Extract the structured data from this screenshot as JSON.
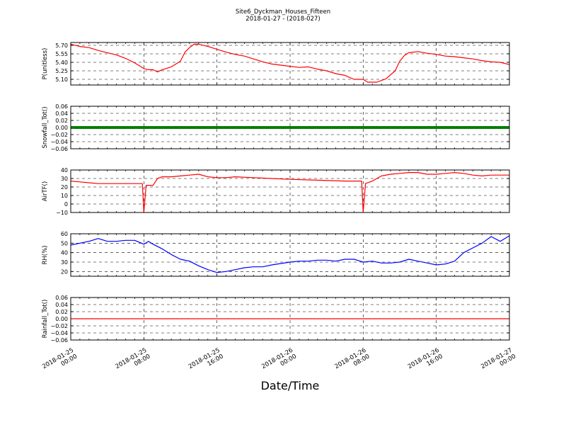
{
  "figure": {
    "title_line1": "Site6_Dyckman_Houses_Fifteen",
    "title_line2": "2018-01-27 - (2018-027)",
    "xlabel": "Date/Time"
  },
  "chart_data": {
    "type": "line",
    "x_axis": {
      "start": "2018-01-25 00:00",
      "end": "2018-01-27 00:00",
      "tick_labels": [
        [
          "2018-01-25",
          "00:00"
        ],
        [
          "2018-01-25",
          "08:00"
        ],
        [
          "2018-01-25",
          "16:00"
        ],
        [
          "2018-01-26",
          "00:00"
        ],
        [
          "2018-01-26",
          "08:00"
        ],
        [
          "2018-01-26",
          "16:00"
        ],
        [
          "2018-01-27",
          "00:00"
        ]
      ],
      "tick_hours": [
        0,
        8,
        16,
        24,
        32,
        40,
        48
      ]
    },
    "grid": true,
    "panels": [
      {
        "ylabel": "P(unitless)",
        "ylim": [
          5.0,
          5.75
        ],
        "yticks": [
          5.1,
          5.25,
          5.4,
          5.55,
          5.7
        ],
        "ytick_labels": [
          "5.10",
          "5.25",
          "5.40",
          "5.55",
          "5.70"
        ],
        "color": "#ff0000",
        "style": "line",
        "points": [
          [
            "2018-01-25 00:00",
            5.72
          ],
          [
            "2018-01-25 01:00",
            5.68
          ],
          [
            "2018-01-25 02:00",
            5.66
          ],
          [
            "2018-01-25 03:00",
            5.61
          ],
          [
            "2018-01-25 04:00",
            5.57
          ],
          [
            "2018-01-25 05:00",
            5.53
          ],
          [
            "2018-01-25 06:00",
            5.47
          ],
          [
            "2018-01-25 07:00",
            5.39
          ],
          [
            "2018-01-25 08:00",
            5.29
          ],
          [
            "2018-01-25 08:30",
            5.27
          ],
          [
            "2018-01-25 09:00",
            5.27
          ],
          [
            "2018-01-25 09:30",
            5.23
          ],
          [
            "2018-01-25 10:00",
            5.27
          ],
          [
            "2018-01-25 11:00",
            5.32
          ],
          [
            "2018-01-25 12:00",
            5.42
          ],
          [
            "2018-01-25 12:30",
            5.58
          ],
          [
            "2018-01-25 13:00",
            5.66
          ],
          [
            "2018-01-25 13:30",
            5.72
          ],
          [
            "2018-01-25 14:00",
            5.72
          ],
          [
            "2018-01-25 15:00",
            5.68
          ],
          [
            "2018-01-25 16:00",
            5.63
          ],
          [
            "2018-01-25 17:00",
            5.58
          ],
          [
            "2018-01-25 18:00",
            5.54
          ],
          [
            "2018-01-25 19:00",
            5.51
          ],
          [
            "2018-01-25 20:00",
            5.46
          ],
          [
            "2018-01-25 21:00",
            5.41
          ],
          [
            "2018-01-25 22:00",
            5.37
          ],
          [
            "2018-01-26 00:00",
            5.33
          ],
          [
            "2018-01-26 01:00",
            5.31
          ],
          [
            "2018-01-26 02:00",
            5.32
          ],
          [
            "2018-01-26 03:00",
            5.28
          ],
          [
            "2018-01-26 04:00",
            5.25
          ],
          [
            "2018-01-26 05:00",
            5.2
          ],
          [
            "2018-01-26 06:00",
            5.17
          ],
          [
            "2018-01-26 07:00",
            5.1
          ],
          [
            "2018-01-26 08:00",
            5.1
          ],
          [
            "2018-01-26 08:30",
            5.05
          ],
          [
            "2018-01-26 09:30",
            5.05
          ],
          [
            "2018-01-26 10:30",
            5.11
          ],
          [
            "2018-01-26 11:30",
            5.25
          ],
          [
            "2018-01-26 12:00",
            5.42
          ],
          [
            "2018-01-26 12:30",
            5.52
          ],
          [
            "2018-01-26 13:00",
            5.57
          ],
          [
            "2018-01-26 14:00",
            5.59
          ],
          [
            "2018-01-26 15:00",
            5.56
          ],
          [
            "2018-01-26 16:00",
            5.54
          ],
          [
            "2018-01-26 17:00",
            5.51
          ],
          [
            "2018-01-26 18:00",
            5.5
          ],
          [
            "2018-01-26 19:00",
            5.48
          ],
          [
            "2018-01-26 20:00",
            5.46
          ],
          [
            "2018-01-26 21:00",
            5.43
          ],
          [
            "2018-01-26 22:00",
            5.41
          ],
          [
            "2018-01-26 23:00",
            5.4
          ],
          [
            "2018-01-27 00:00",
            5.36
          ]
        ]
      },
      {
        "ylabel": "Snowfall_Tot()",
        "ylim": [
          -0.06,
          0.06
        ],
        "yticks": [
          -0.06,
          -0.04,
          -0.02,
          0.0,
          0.02,
          0.04,
          0.06
        ],
        "ytick_labels": [
          "−0.06",
          "−0.04",
          "−0.02",
          "0.00",
          "0.02",
          "0.04",
          "0.06"
        ],
        "color": "#007f00",
        "style": "thick-line",
        "points": [
          [
            "2018-01-25 00:00",
            0.0
          ],
          [
            "2018-01-27 00:00",
            0.0
          ]
        ]
      },
      {
        "ylabel": "AirTF()",
        "ylim": [
          -10,
          40
        ],
        "yticks": [
          -10,
          0,
          10,
          20,
          30,
          40
        ],
        "ytick_labels": [
          "−10",
          "0",
          "10",
          "20",
          "30",
          "40"
        ],
        "color": "#ff0000",
        "style": "line",
        "points": [
          [
            "2018-01-25 00:00",
            27
          ],
          [
            "2018-01-25 01:00",
            26
          ],
          [
            "2018-01-25 02:00",
            25
          ],
          [
            "2018-01-25 03:00",
            24
          ],
          [
            "2018-01-25 05:00",
            24
          ],
          [
            "2018-01-25 07:00",
            24
          ],
          [
            "2018-01-25 07:50",
            24
          ],
          [
            "2018-01-25 08:00",
            -10
          ],
          [
            "2018-01-25 08:15",
            22
          ],
          [
            "2018-01-25 09:00",
            22
          ],
          [
            "2018-01-25 09:30",
            30
          ],
          [
            "2018-01-25 10:00",
            32
          ],
          [
            "2018-01-25 11:00",
            32
          ],
          [
            "2018-01-25 12:00",
            33
          ],
          [
            "2018-01-25 13:00",
            34
          ],
          [
            "2018-01-25 14:00",
            35
          ],
          [
            "2018-01-25 15:00",
            32
          ],
          [
            "2018-01-25 16:00",
            31
          ],
          [
            "2018-01-25 17:00",
            31
          ],
          [
            "2018-01-25 18:00",
            32
          ],
          [
            "2018-01-25 20:00",
            31
          ],
          [
            "2018-01-25 22:00",
            30
          ],
          [
            "2018-01-26 00:00",
            29
          ],
          [
            "2018-01-26 03:00",
            28
          ],
          [
            "2018-01-26 06:00",
            27
          ],
          [
            "2018-01-26 07:50",
            27
          ],
          [
            "2018-01-26 08:00",
            -10
          ],
          [
            "2018-01-26 08:15",
            24
          ],
          [
            "2018-01-26 09:00",
            27
          ],
          [
            "2018-01-26 10:00",
            33
          ],
          [
            "2018-01-26 11:00",
            35
          ],
          [
            "2018-01-26 12:00",
            36
          ],
          [
            "2018-01-26 13:00",
            37
          ],
          [
            "2018-01-26 14:00",
            37
          ],
          [
            "2018-01-26 15:00",
            35
          ],
          [
            "2018-01-26 16:00",
            35
          ],
          [
            "2018-01-26 17:00",
            36
          ],
          [
            "2018-01-26 18:00",
            37
          ],
          [
            "2018-01-26 19:00",
            36
          ],
          [
            "2018-01-26 20:00",
            34
          ],
          [
            "2018-01-26 21:00",
            33
          ],
          [
            "2018-01-26 22:00",
            34
          ],
          [
            "2018-01-27 00:00",
            34
          ]
        ]
      },
      {
        "ylabel": "RH(%)",
        "ylim": [
          15,
          60
        ],
        "yticks": [
          20,
          30,
          40,
          50,
          60
        ],
        "ytick_labels": [
          "20",
          "30",
          "40",
          "50",
          "60"
        ],
        "color": "#0000ff",
        "style": "line",
        "points": [
          [
            "2018-01-25 00:00",
            48
          ],
          [
            "2018-01-25 01:00",
            50
          ],
          [
            "2018-01-25 02:00",
            52
          ],
          [
            "2018-01-25 03:00",
            55
          ],
          [
            "2018-01-25 04:00",
            52
          ],
          [
            "2018-01-25 05:00",
            52
          ],
          [
            "2018-01-25 06:00",
            53
          ],
          [
            "2018-01-25 07:00",
            53
          ],
          [
            "2018-01-25 08:00",
            49
          ],
          [
            "2018-01-25 08:30",
            52
          ],
          [
            "2018-01-25 09:00",
            49
          ],
          [
            "2018-01-25 10:00",
            44
          ],
          [
            "2018-01-25 11:00",
            38
          ],
          [
            "2018-01-25 12:00",
            33
          ],
          [
            "2018-01-25 13:00",
            31
          ],
          [
            "2018-01-25 14:00",
            26
          ],
          [
            "2018-01-25 15:00",
            22
          ],
          [
            "2018-01-25 16:00",
            19
          ],
          [
            "2018-01-25 17:00",
            20
          ],
          [
            "2018-01-25 18:00",
            22
          ],
          [
            "2018-01-25 19:00",
            24
          ],
          [
            "2018-01-25 20:00",
            25
          ],
          [
            "2018-01-25 21:00",
            25
          ],
          [
            "2018-01-25 22:00",
            27
          ],
          [
            "2018-01-26 00:00",
            30
          ],
          [
            "2018-01-26 01:00",
            31
          ],
          [
            "2018-01-26 02:00",
            31
          ],
          [
            "2018-01-26 03:00",
            32
          ],
          [
            "2018-01-26 04:00",
            32
          ],
          [
            "2018-01-26 05:00",
            31
          ],
          [
            "2018-01-26 06:00",
            33
          ],
          [
            "2018-01-26 07:00",
            33
          ],
          [
            "2018-01-26 08:00",
            30
          ],
          [
            "2018-01-26 09:00",
            31
          ],
          [
            "2018-01-26 10:00",
            29
          ],
          [
            "2018-01-26 11:00",
            29
          ],
          [
            "2018-01-26 12:00",
            30
          ],
          [
            "2018-01-26 13:00",
            33
          ],
          [
            "2018-01-26 14:00",
            31
          ],
          [
            "2018-01-26 15:00",
            29
          ],
          [
            "2018-01-26 16:00",
            27
          ],
          [
            "2018-01-26 17:00",
            28
          ],
          [
            "2018-01-26 18:00",
            31
          ],
          [
            "2018-01-26 19:00",
            40
          ],
          [
            "2018-01-26 20:00",
            45
          ],
          [
            "2018-01-26 21:00",
            50
          ],
          [
            "2018-01-26 22:00",
            57
          ],
          [
            "2018-01-26 23:00",
            52
          ],
          [
            "2018-01-27 00:00",
            58
          ]
        ]
      },
      {
        "ylabel": "Rainfall_Tot()",
        "ylim": [
          -0.06,
          0.06
        ],
        "yticks": [
          -0.06,
          -0.04,
          -0.02,
          0.0,
          0.02,
          0.04,
          0.06
        ],
        "ytick_labels": [
          "−0.06",
          "−0.04",
          "−0.02",
          "0.00",
          "0.02",
          "0.04",
          "0.06"
        ],
        "color": "#ff0000",
        "style": "line",
        "points": [
          [
            "2018-01-25 00:00",
            0.0
          ],
          [
            "2018-01-27 00:00",
            0.0
          ]
        ]
      }
    ]
  }
}
